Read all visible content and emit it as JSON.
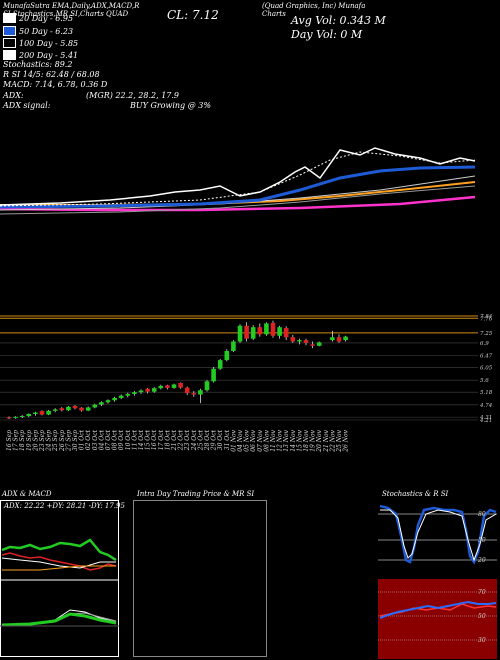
{
  "header": {
    "studies": "MunafaSutra EMA,Daily,ADX,MACD,R    SI,Stochastics,MR    SI,Charts QUAD",
    "company": "(Quad Graphics, Inc) Munafa Charts",
    "close": "CL: 7.12",
    "avg_vol": "Avg Vol: 0.343 M",
    "day_vol": "Day Vol: 0   M"
  },
  "legend": [
    {
      "label": "20  Day - 6.95",
      "color": "#ffffff"
    },
    {
      "label": "50  Day - 6.23",
      "color": "#1e5bd6"
    },
    {
      "label": "100  Day - 5.85",
      "color": "#000000"
    },
    {
      "label": "200  Day - 5.41",
      "color": "#ffffff"
    }
  ],
  "indicators": [
    "Stochastics: 89.2",
    "R       SI 14/5: 62.48 / 68.08",
    "MACD: 7.14, 6.78, 0.36  D"
  ],
  "adx_line": {
    "label": "ADX:",
    "value": "(MGR) 22.2,  28.2,  17.9"
  },
  "signal_line": {
    "label": "ADX   signal:",
    "value": "BUY Growing @ 3%"
  },
  "panels": {
    "adx_title": "ADX  & MACD",
    "adx_values": "ADX: 22.22  +DY: 28.21 -DY: 17.95",
    "intraday_title": "Intra Day Trading Price  & MR          SI",
    "stoch_title": "Stochastics & R          SI"
  },
  "colors": {
    "up": "#22cc22",
    "down": "#dd2222",
    "ema20": "#ffffff",
    "ema50": "#1e5bd6",
    "ema100": "#ffa020",
    "ema200": "#ff33cc",
    "grid": "#b07a10"
  },
  "chart_data": {
    "type": "candlestick",
    "y_ticks": [
      7.84,
      7.76,
      7.25,
      6.9,
      6.47,
      6.05,
      5.6,
      5.18,
      4.74,
      4.31,
      4.21
    ],
    "dates": [
      "16 Sep",
      "17 Sep",
      "18 Sep",
      "19 Sep",
      "20 Sep",
      "23 Sep",
      "24 Sep",
      "25 Sep",
      "26 Sep",
      "27 Sep",
      "30 Sep",
      "01 Oct",
      "02 Oct",
      "03 Oct",
      "04 Oct",
      "07 Oct",
      "08 Oct",
      "09 Oct",
      "10 Oct",
      "11 Oct",
      "14 Oct",
      "15 Oct",
      "16 Oct",
      "17 Oct",
      "18 Oct",
      "21 Oct",
      "22 Oct",
      "23 Oct",
      "24 Oct",
      "25 Oct",
      "28 Oct",
      "29 Oct",
      "30 Oct",
      "31 Oct",
      "01 Nov",
      "04 Nov",
      "05 Nov",
      "06 Nov",
      "07 Nov",
      "08 Nov",
      "11 Nov",
      "12 Nov",
      "13 Nov",
      "14 Nov",
      "15 Nov",
      "18 Nov",
      "19 Nov",
      "20 Nov",
      "21 Nov",
      "22 Nov",
      "25 Nov",
      "26 Nov"
    ],
    "candles": [
      [
        4.3,
        4.33,
        4.24,
        4.29
      ],
      [
        4.29,
        4.34,
        4.26,
        4.32
      ],
      [
        4.32,
        4.38,
        4.28,
        4.35
      ],
      [
        4.35,
        4.44,
        4.31,
        4.42
      ],
      [
        4.42,
        4.5,
        4.36,
        4.47
      ],
      [
        4.52,
        4.55,
        4.37,
        4.4
      ],
      [
        4.4,
        4.56,
        4.38,
        4.53
      ],
      [
        4.53,
        4.62,
        4.48,
        4.58
      ],
      [
        4.62,
        4.66,
        4.51,
        4.55
      ],
      [
        4.55,
        4.7,
        4.52,
        4.67
      ],
      [
        4.7,
        4.73,
        4.58,
        4.62
      ],
      [
        4.64,
        4.66,
        4.5,
        4.54
      ],
      [
        4.54,
        4.68,
        4.52,
        4.65
      ],
      [
        4.65,
        4.78,
        4.62,
        4.75
      ],
      [
        4.75,
        4.86,
        4.7,
        4.83
      ],
      [
        4.83,
        4.93,
        4.78,
        4.9
      ],
      [
        4.9,
        5.02,
        4.85,
        4.98
      ],
      [
        4.98,
        5.1,
        4.94,
        5.06
      ],
      [
        5.06,
        5.16,
        5.0,
        5.12
      ],
      [
        5.12,
        5.22,
        5.06,
        5.18
      ],
      [
        5.18,
        5.28,
        5.12,
        5.24
      ],
      [
        5.3,
        5.33,
        5.14,
        5.2
      ],
      [
        5.2,
        5.36,
        5.16,
        5.32
      ],
      [
        5.32,
        5.44,
        5.28,
        5.4
      ],
      [
        5.42,
        5.44,
        5.28,
        5.33
      ],
      [
        5.33,
        5.48,
        5.3,
        5.45
      ],
      [
        5.5,
        5.52,
        5.3,
        5.34
      ],
      [
        5.34,
        5.38,
        5.08,
        5.15
      ],
      [
        5.15,
        5.22,
        5.02,
        5.1
      ],
      [
        5.1,
        5.3,
        4.8,
        5.25
      ],
      [
        5.25,
        5.6,
        5.2,
        5.56
      ],
      [
        5.56,
        6.06,
        5.52,
        6.0
      ],
      [
        6.0,
        6.34,
        5.96,
        6.3
      ],
      [
        6.3,
        6.68,
        6.26,
        6.62
      ],
      [
        6.62,
        7.0,
        6.58,
        6.95
      ],
      [
        6.95,
        7.55,
        6.9,
        7.5
      ],
      [
        7.5,
        7.62,
        6.95,
        7.05
      ],
      [
        7.05,
        7.52,
        7.0,
        7.45
      ],
      [
        7.45,
        7.58,
        7.12,
        7.2
      ],
      [
        7.2,
        7.62,
        7.15,
        7.58
      ],
      [
        7.6,
        7.68,
        7.08,
        7.15
      ],
      [
        7.15,
        7.5,
        7.05,
        7.45
      ],
      [
        7.42,
        7.48,
        7.0,
        7.1
      ],
      [
        7.1,
        7.18,
        6.9,
        6.95
      ],
      [
        6.95,
        7.05,
        6.85,
        7.0
      ],
      [
        7.0,
        7.05,
        6.82,
        6.9
      ],
      [
        6.85,
        6.95,
        6.72,
        6.8
      ],
      [
        6.8,
        6.95,
        6.78,
        6.92
      ],
      [
        null,
        null,
        null,
        null
      ],
      [
        7.0,
        7.32,
        6.95,
        7.1
      ],
      [
        7.1,
        7.2,
        6.9,
        6.95
      ],
      [
        7.0,
        7.15,
        6.95,
        7.12
      ]
    ]
  }
}
